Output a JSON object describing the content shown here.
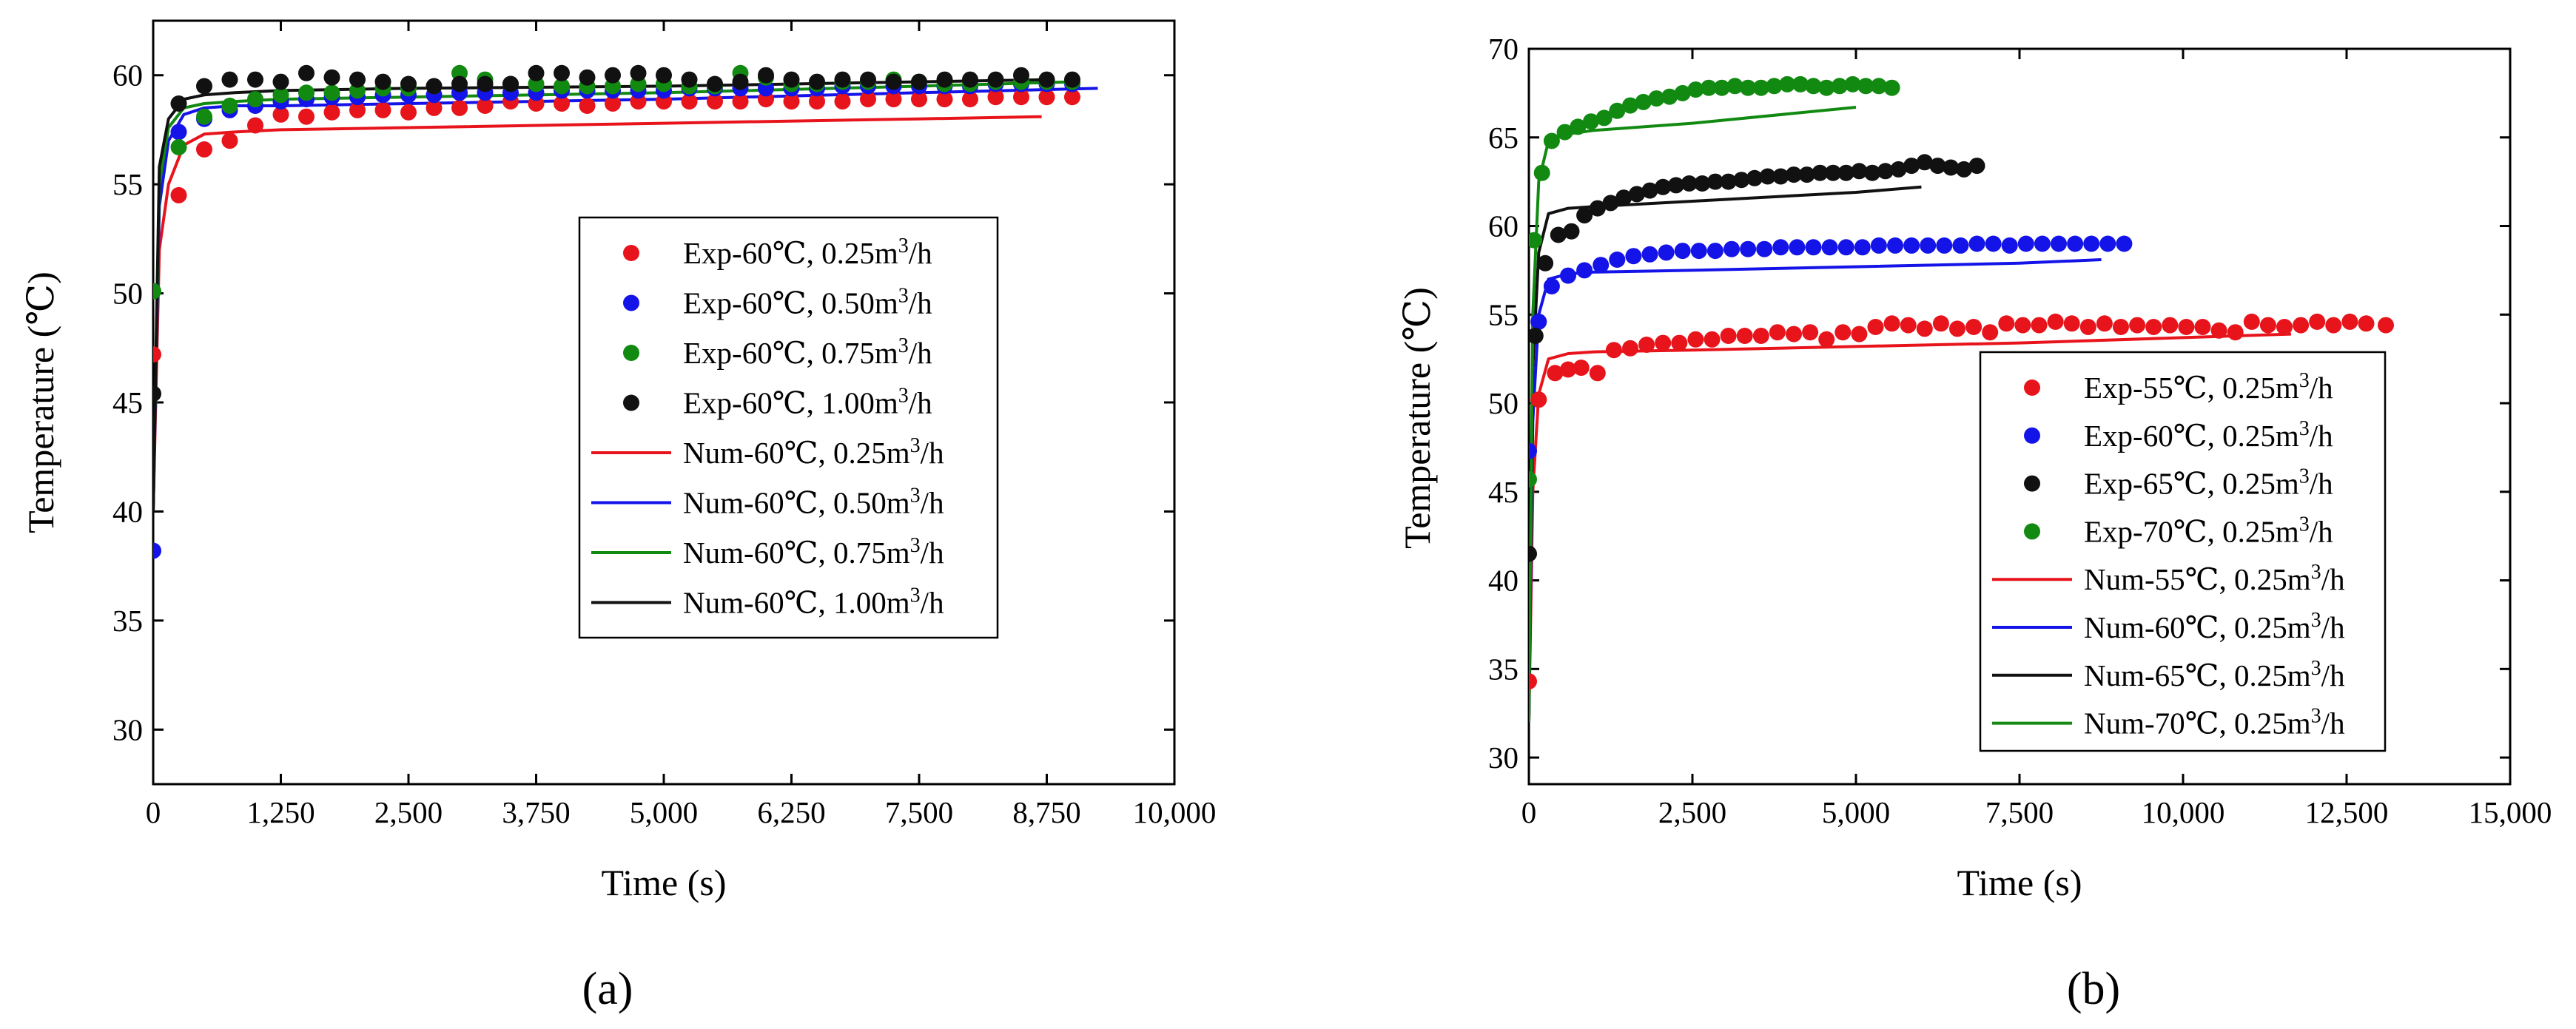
{
  "chart_data": [
    {
      "type": "scatter",
      "panel_label": "(a)",
      "xlabel": "Time (s)",
      "ylabel": "Temperature (℃)",
      "xlim": [
        0,
        10000
      ],
      "ylim": [
        27.5,
        62.5
      ],
      "xticks": [
        0,
        1250,
        2500,
        3750,
        5000,
        6250,
        7500,
        8750,
        10000
      ],
      "xtick_labels": [
        "0",
        "1,250",
        "2,500",
        "3,750",
        "5,000",
        "6,250",
        "7,500",
        "8,750",
        "10,000"
      ],
      "yticks": [
        30,
        35,
        40,
        45,
        50,
        55,
        60
      ],
      "ytick_labels": [
        "30",
        "35",
        "40",
        "45",
        "50",
        "55",
        "60"
      ],
      "grid": false,
      "legend_position": "center-right",
      "series": [
        {
          "name": "Exp-60℃, 0.25m³/h",
          "kind": "scatter",
          "color": "#e8141c",
          "x": [
            0,
            250,
            500,
            750,
            1000,
            1250,
            1500,
            1750,
            2000,
            2250,
            2500,
            2750,
            3000,
            3250,
            3500,
            3750,
            4000,
            4250,
            4500,
            4750,
            5000,
            5250,
            5500,
            5750,
            6000,
            6250,
            6500,
            6750,
            7000,
            7250,
            7500,
            7750,
            8000,
            8250,
            8500,
            8750,
            9000
          ],
          "y": [
            47.2,
            54.5,
            56.6,
            57.0,
            57.7,
            58.2,
            58.1,
            58.3,
            58.4,
            58.4,
            58.3,
            58.5,
            58.5,
            58.6,
            58.8,
            58.7,
            58.7,
            58.6,
            58.7,
            58.8,
            58.8,
            58.8,
            58.8,
            58.8,
            58.9,
            58.8,
            58.8,
            58.8,
            58.9,
            58.9,
            58.9,
            58.9,
            58.9,
            59.0,
            59.0,
            59.0,
            59.0
          ]
        },
        {
          "name": "Exp-60℃, 0.50m³/h",
          "kind": "scatter",
          "color": "#1414e8",
          "x": [
            0,
            250,
            500,
            750,
            1000,
            1250,
            1500,
            1750,
            2000,
            2250,
            2500,
            2750,
            3000,
            3250,
            3500,
            3750,
            4000,
            4250,
            4500,
            4750,
            5000,
            5250,
            5500,
            5750,
            6000,
            6250,
            6500,
            6750,
            7000,
            7250,
            7500,
            7750,
            8000,
            8250,
            8500,
            8750,
            9000
          ],
          "y": [
            38.2,
            57.4,
            58.0,
            58.4,
            58.6,
            58.8,
            58.9,
            59.0,
            59.0,
            59.1,
            59.1,
            59.1,
            59.2,
            59.2,
            59.2,
            59.2,
            59.3,
            59.3,
            59.3,
            59.3,
            59.3,
            59.4,
            59.4,
            59.4,
            59.4,
            59.4,
            59.4,
            59.5,
            59.5,
            59.5,
            59.5,
            59.5,
            59.5,
            59.6,
            59.6,
            59.6,
            59.6
          ]
        },
        {
          "name": "Exp-60℃, 0.75m³/h",
          "kind": "scatter",
          "color": "#128a12",
          "x": [
            0,
            250,
            500,
            750,
            1000,
            1250,
            1500,
            1750,
            2000,
            2250,
            2500,
            2750,
            3000,
            3250,
            3500,
            3750,
            4000,
            4250,
            4500,
            4750,
            5000,
            5250,
            5500,
            5750,
            6000,
            6250,
            6500,
            6750,
            7000,
            7250,
            7500,
            7750,
            8000,
            8250,
            8500,
            8750,
            9000
          ],
          "y": [
            50.1,
            56.7,
            58.1,
            58.6,
            58.9,
            59.1,
            59.2,
            59.2,
            59.3,
            59.4,
            59.4,
            59.5,
            60.1,
            59.8,
            59.6,
            59.6,
            59.5,
            59.5,
            59.5,
            59.6,
            59.6,
            59.5,
            59.5,
            60.1,
            59.9,
            59.6,
            59.6,
            59.7,
            59.7,
            59.8,
            59.7,
            59.6,
            59.6,
            59.7,
            59.7,
            59.7,
            59.7
          ]
        },
        {
          "name": "Exp-60℃, 1.00m³/h",
          "kind": "scatter",
          "color": "#111111",
          "x": [
            0,
            250,
            500,
            750,
            1000,
            1250,
            1500,
            1750,
            2000,
            2250,
            2500,
            2750,
            3000,
            3250,
            3500,
            3750,
            4000,
            4250,
            4500,
            4750,
            5000,
            5250,
            5500,
            5750,
            6000,
            6250,
            6500,
            6750,
            7000,
            7250,
            7500,
            7750,
            8000,
            8250,
            8500,
            8750,
            9000
          ],
          "y": [
            45.4,
            58.7,
            59.5,
            59.8,
            59.8,
            59.7,
            60.1,
            59.9,
            59.8,
            59.7,
            59.6,
            59.5,
            59.6,
            59.6,
            59.6,
            60.1,
            60.1,
            59.9,
            60.0,
            60.1,
            60.0,
            59.8,
            59.6,
            59.7,
            60.0,
            59.8,
            59.7,
            59.8,
            59.8,
            59.7,
            59.7,
            59.8,
            59.8,
            59.8,
            60.0,
            59.8,
            59.8
          ]
        },
        {
          "name": "Num-60℃, 0.25m³/h",
          "kind": "line",
          "color": "#e8141c",
          "x": [
            0,
            60,
            150,
            300,
            500,
            800,
            1250,
            2500,
            5000,
            7500,
            8700
          ],
          "y": [
            40.0,
            52.0,
            55.0,
            56.8,
            57.3,
            57.4,
            57.5,
            57.6,
            57.8,
            58.0,
            58.1
          ]
        },
        {
          "name": "Num-60℃, 0.50m³/h",
          "kind": "line",
          "color": "#1414e8",
          "x": [
            0,
            60,
            150,
            300,
            500,
            800,
            1250,
            2500,
            5000,
            7500,
            9250
          ],
          "y": [
            40.0,
            54.0,
            57.0,
            58.2,
            58.5,
            58.6,
            58.6,
            58.7,
            58.9,
            59.2,
            59.4
          ]
        },
        {
          "name": "Num-60℃, 0.75m³/h",
          "kind": "line",
          "color": "#128a12",
          "x": [
            0,
            60,
            150,
            300,
            500,
            800,
            1250,
            2500,
            5000,
            7500,
            9000
          ],
          "y": [
            40.0,
            55.0,
            57.6,
            58.5,
            58.7,
            58.8,
            58.9,
            59.0,
            59.2,
            59.5,
            59.7
          ]
        },
        {
          "name": "Num-60℃, 1.00m³/h",
          "kind": "line",
          "color": "#111111",
          "x": [
            0,
            60,
            150,
            300,
            500,
            800,
            1250,
            2500,
            5000,
            7500,
            8800
          ],
          "y": [
            40.0,
            55.8,
            58.0,
            58.9,
            59.1,
            59.2,
            59.3,
            59.4,
            59.5,
            59.7,
            59.8
          ]
        }
      ]
    },
    {
      "type": "scatter",
      "panel_label": "(b)",
      "xlabel": "Time (s)",
      "ylabel": "Temperature (℃)",
      "xlim": [
        0,
        15000
      ],
      "ylim": [
        28.5,
        70
      ],
      "xticks": [
        0,
        2500,
        5000,
        7500,
        10000,
        12500,
        15000
      ],
      "xtick_labels": [
        "0",
        "2,500",
        "5,000",
        "7,500",
        "10,000",
        "12,500",
        "15,000"
      ],
      "yticks": [
        30,
        35,
        40,
        45,
        50,
        55,
        60,
        65,
        70
      ],
      "ytick_labels": [
        "30",
        "35",
        "40",
        "45",
        "50",
        "55",
        "60",
        "65",
        "70"
      ],
      "grid": false,
      "legend_position": "lower-right",
      "series": [
        {
          "name": "Exp-55℃, 0.25m³/h",
          "kind": "scatter",
          "color": "#e8141c",
          "x": [
            0,
            150,
            400,
            600,
            800,
            1050,
            1300,
            1550,
            1800,
            2050,
            2300,
            2550,
            2800,
            3050,
            3300,
            3550,
            3800,
            4050,
            4300,
            4550,
            4800,
            5050,
            5300,
            5550,
            5800,
            6050,
            6300,
            6550,
            6800,
            7050,
            7300,
            7550,
            7800,
            8050,
            8300,
            8550,
            8800,
            9050,
            9300,
            9550,
            9800,
            10050,
            10300,
            10550,
            10800,
            11050,
            11300,
            11550,
            11800,
            12050,
            12300,
            12550,
            12800,
            13100
          ],
          "y": [
            34.3,
            50.2,
            51.7,
            51.9,
            52.0,
            51.7,
            53.0,
            53.1,
            53.3,
            53.4,
            53.4,
            53.6,
            53.6,
            53.8,
            53.8,
            53.8,
            54.0,
            53.9,
            54.0,
            53.6,
            54.0,
            53.9,
            54.3,
            54.5,
            54.4,
            54.2,
            54.5,
            54.2,
            54.3,
            54.0,
            54.5,
            54.4,
            54.4,
            54.6,
            54.5,
            54.3,
            54.5,
            54.3,
            54.4,
            54.3,
            54.4,
            54.3,
            54.3,
            54.1,
            54.0,
            54.6,
            54.4,
            54.3,
            54.4,
            54.6,
            54.4,
            54.6,
            54.5,
            54.4
          ]
        },
        {
          "name": "Exp-60℃, 0.25m³/h",
          "kind": "scatter",
          "color": "#1414e8",
          "x": [
            0,
            150,
            350,
            600,
            850,
            1100,
            1350,
            1600,
            1850,
            2100,
            2350,
            2600,
            2850,
            3100,
            3350,
            3600,
            3850,
            4100,
            4350,
            4600,
            4850,
            5100,
            5350,
            5600,
            5850,
            6100,
            6350,
            6600,
            6850,
            7100,
            7350,
            7600,
            7850,
            8100,
            8350,
            8600,
            8850,
            9100
          ],
          "y": [
            47.3,
            54.6,
            56.6,
            57.2,
            57.5,
            57.8,
            58.1,
            58.3,
            58.4,
            58.5,
            58.6,
            58.6,
            58.6,
            58.7,
            58.7,
            58.7,
            58.8,
            58.8,
            58.8,
            58.8,
            58.8,
            58.8,
            58.9,
            58.9,
            58.9,
            58.9,
            58.9,
            58.9,
            59.0,
            59.0,
            58.9,
            59.0,
            59.0,
            59.0,
            59.0,
            59.0,
            59.0,
            59.0
          ]
        },
        {
          "name": "Exp-65℃, 0.25m³/h",
          "kind": "scatter",
          "color": "#111111",
          "x": [
            0,
            100,
            250,
            450,
            650,
            850,
            1050,
            1250,
            1450,
            1650,
            1850,
            2050,
            2250,
            2450,
            2650,
            2850,
            3050,
            3250,
            3450,
            3650,
            3850,
            4050,
            4250,
            4450,
            4650,
            4850,
            5050,
            5250,
            5450,
            5650,
            5850,
            6050,
            6250,
            6450,
            6650,
            6850
          ],
          "y": [
            41.5,
            53.8,
            57.9,
            59.5,
            59.7,
            60.6,
            61.0,
            61.3,
            61.6,
            61.8,
            62.0,
            62.2,
            62.3,
            62.4,
            62.4,
            62.5,
            62.5,
            62.6,
            62.7,
            62.8,
            62.8,
            62.9,
            62.9,
            63.0,
            63.0,
            63.0,
            63.1,
            63.0,
            63.1,
            63.2,
            63.4,
            63.6,
            63.4,
            63.3,
            63.2,
            63.4
          ]
        },
        {
          "name": "Exp-70℃, 0.25m³/h",
          "kind": "scatter",
          "color": "#128a12",
          "x": [
            0,
            80,
            200,
            350,
            550,
            750,
            950,
            1150,
            1350,
            1550,
            1750,
            1950,
            2150,
            2350,
            2550,
            2750,
            2950,
            3150,
            3350,
            3550,
            3750,
            3950,
            4150,
            4350,
            4550,
            4750,
            4950,
            5150,
            5350,
            5550
          ],
          "y": [
            45.7,
            59.2,
            63.0,
            64.8,
            65.3,
            65.6,
            65.9,
            66.1,
            66.5,
            66.8,
            67.0,
            67.2,
            67.3,
            67.5,
            67.7,
            67.8,
            67.8,
            67.9,
            67.8,
            67.8,
            67.9,
            68.0,
            68.0,
            67.9,
            67.8,
            67.9,
            68.0,
            67.9,
            67.9,
            67.8
          ]
        },
        {
          "name": "Num-55℃, 0.25m³/h",
          "kind": "line",
          "color": "#e8141c",
          "x": [
            0,
            60,
            150,
            300,
            600,
            1000,
            2500,
            5000,
            7500,
            10000,
            11650
          ],
          "y": [
            32.0,
            45.0,
            50.5,
            52.5,
            52.8,
            52.9,
            53.0,
            53.2,
            53.4,
            53.7,
            53.9
          ]
        },
        {
          "name": "Num-60℃, 0.25m³/h",
          "kind": "line",
          "color": "#1414e8",
          "x": [
            0,
            60,
            150,
            300,
            600,
            1000,
            2500,
            5000,
            7500,
            8750
          ],
          "y": [
            32.0,
            49.0,
            55.0,
            57.0,
            57.3,
            57.4,
            57.5,
            57.7,
            57.9,
            58.1
          ]
        },
        {
          "name": "Num-65℃, 0.25m³/h",
          "kind": "line",
          "color": "#111111",
          "x": [
            0,
            60,
            150,
            300,
            600,
            1000,
            2500,
            5000,
            6000
          ],
          "y": [
            32.0,
            52.0,
            58.5,
            60.7,
            61.0,
            61.1,
            61.4,
            61.9,
            62.2
          ]
        },
        {
          "name": "Num-70℃, 0.25m³/h",
          "kind": "line",
          "color": "#128a12",
          "x": [
            0,
            60,
            150,
            300,
            600,
            1000,
            2500,
            5000
          ],
          "y": [
            32.0,
            55.0,
            62.5,
            64.8,
            65.2,
            65.4,
            65.8,
            66.7
          ]
        }
      ]
    }
  ]
}
